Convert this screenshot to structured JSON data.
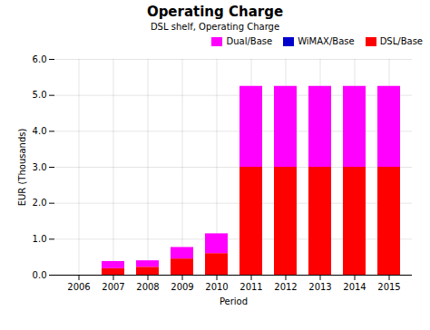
{
  "chart_data": {
    "type": "bar",
    "title": "Operating Charge",
    "subtitle": "DSL shelf, Operating Charge",
    "xlabel": "Period",
    "ylabel": "EUR (Thousands)",
    "categories": [
      "2006",
      "2007",
      "2008",
      "2009",
      "2010",
      "2011",
      "2012",
      "2013",
      "2014",
      "2015"
    ],
    "series": [
      {
        "name": "DSL/Base",
        "color": "#ff0000",
        "values": [
          0.0,
          0.18,
          0.22,
          0.45,
          0.6,
          3.0,
          3.0,
          3.0,
          3.0,
          3.0
        ]
      },
      {
        "name": "WiMAX/Base",
        "color": "#0000cc",
        "values": [
          0.0,
          0.0,
          0.0,
          0.0,
          0.0,
          0.0,
          0.0,
          0.0,
          0.0,
          0.0
        ]
      },
      {
        "name": "Dual/Base",
        "color": "#ff00ff",
        "values": [
          0.0,
          0.2,
          0.18,
          0.32,
          0.55,
          2.25,
          2.25,
          2.25,
          2.25,
          2.25
        ]
      }
    ],
    "stacked": true,
    "ylim": [
      0,
      6
    ],
    "yticks": [
      0,
      1,
      2,
      3,
      4,
      5,
      6
    ],
    "grid": true,
    "legend": "upper right"
  }
}
